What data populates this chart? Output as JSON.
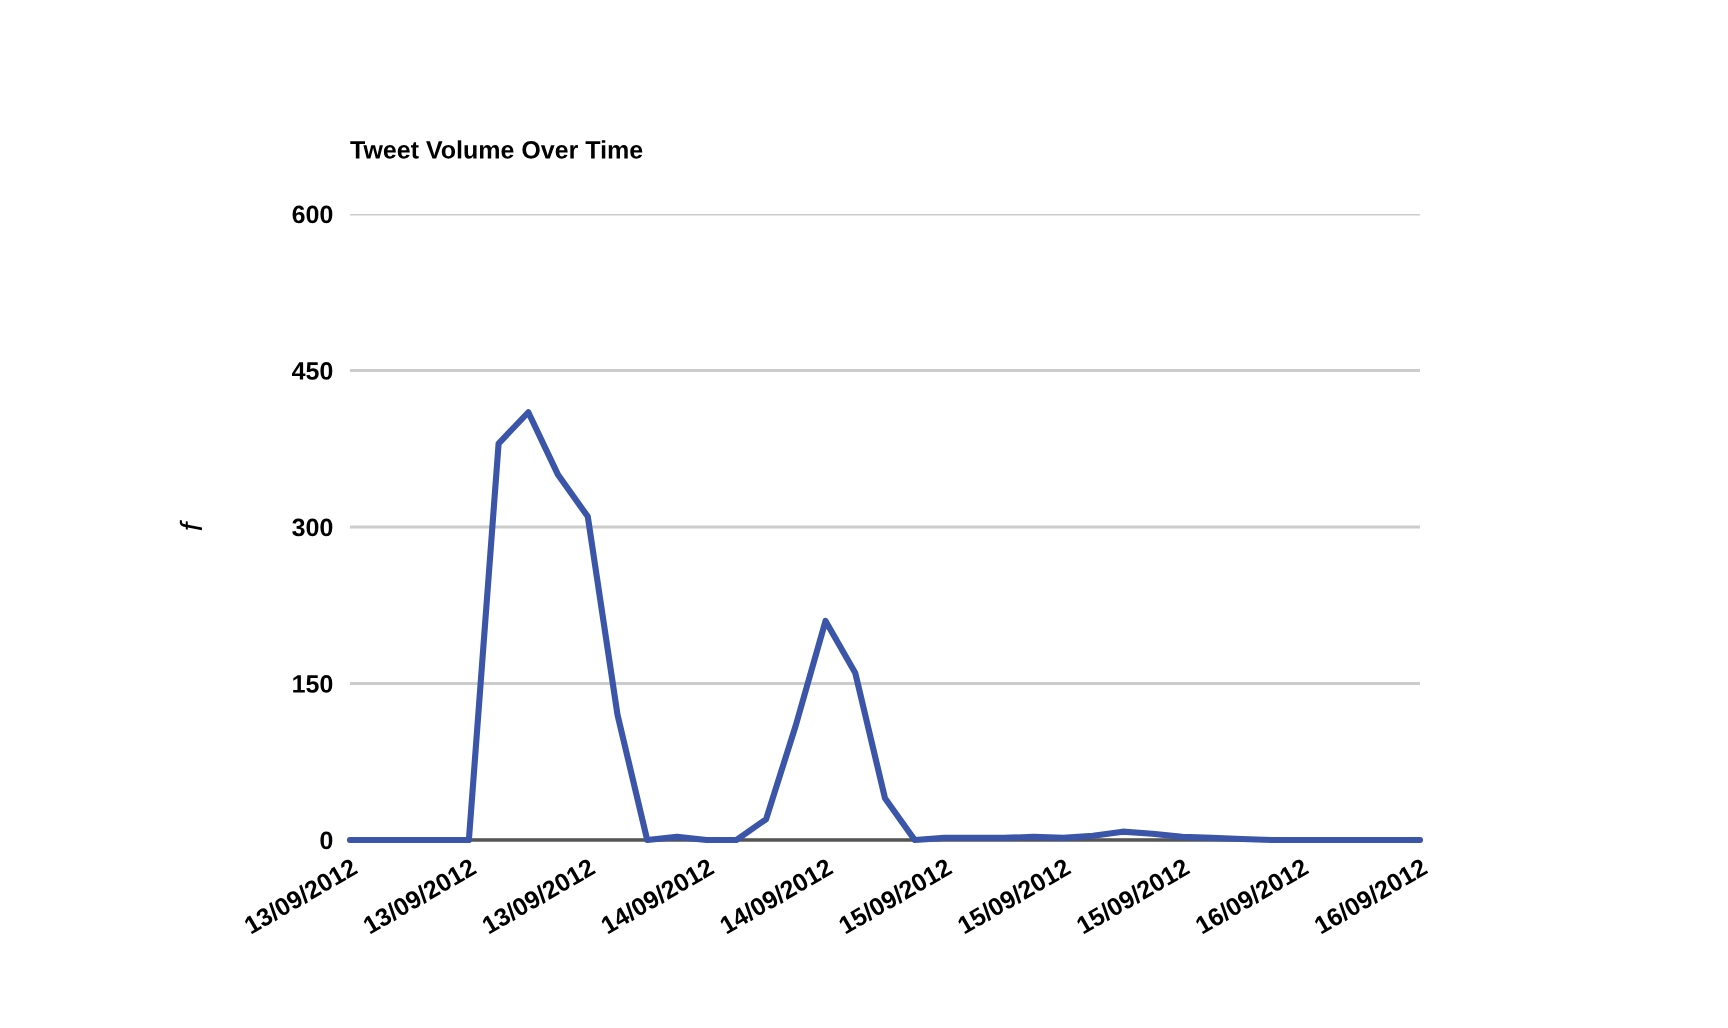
{
  "chart_data": {
    "type": "line",
    "title": "Tweet Volume Over Time",
    "ylabel": "f",
    "categories": [
      "13/09/2012",
      null,
      null,
      null,
      "13/09/2012",
      null,
      null,
      null,
      "13/09/2012",
      null,
      null,
      null,
      "14/09/2012",
      null,
      null,
      null,
      "14/09/2012",
      null,
      null,
      null,
      "15/09/2012",
      null,
      null,
      null,
      "15/09/2012",
      null,
      null,
      null,
      "15/09/2012",
      null,
      null,
      null,
      "16/09/2012",
      null,
      null,
      null,
      "16/09/2012"
    ],
    "series": [
      {
        "color": "#3b55a8",
        "values": [
          0,
          0,
          0,
          0,
          0,
          380,
          410,
          350,
          310,
          120,
          0,
          3,
          0,
          0,
          20,
          110,
          210,
          160,
          40,
          0,
          2,
          2,
          2,
          3,
          2,
          4,
          8,
          6,
          3,
          2,
          1,
          0,
          0,
          0,
          0,
          0,
          0
        ]
      }
    ],
    "ylim": [
      0,
      600
    ],
    "yticks": [
      0,
      150,
      300,
      450,
      600
    ],
    "grid": "y",
    "line_style": "solid"
  }
}
